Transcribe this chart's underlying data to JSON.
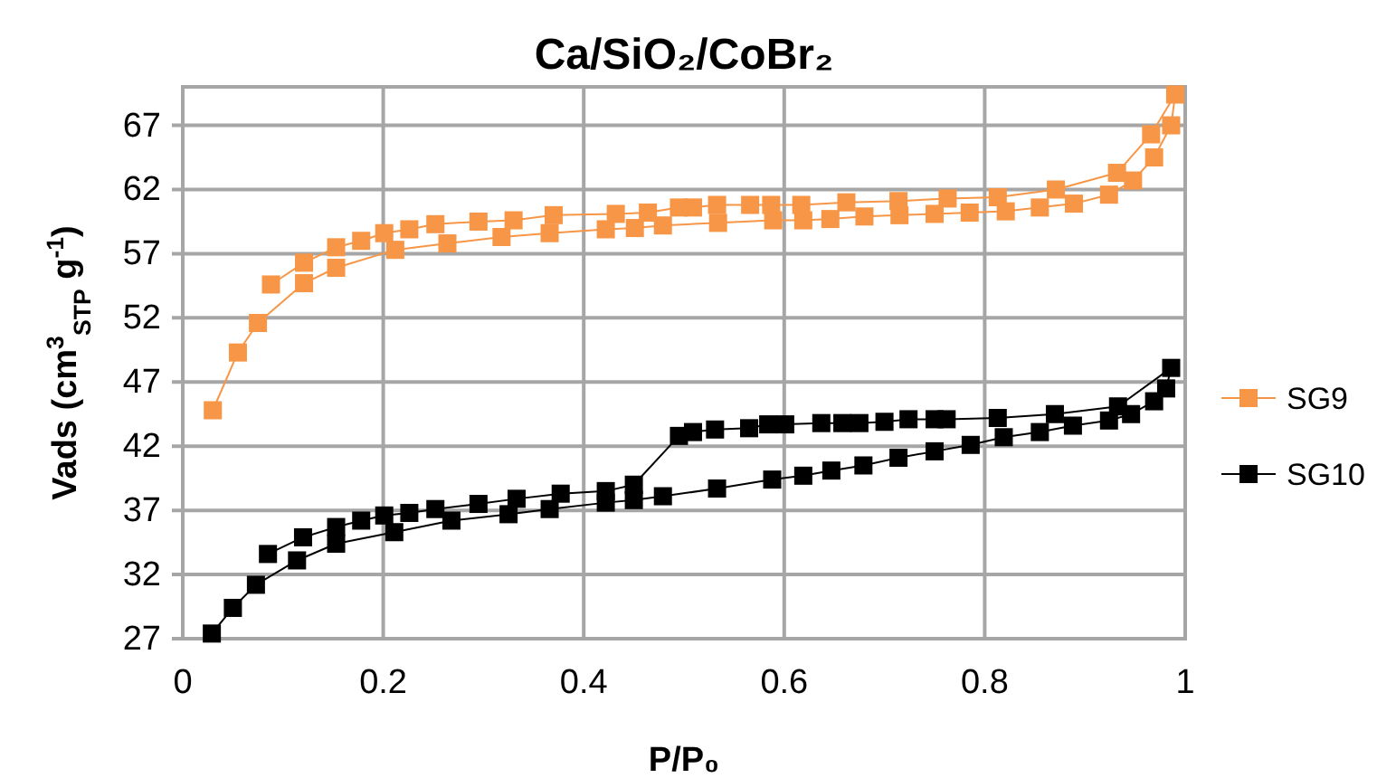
{
  "chart_data": {
    "type": "line",
    "title": "Ca/SiO₂/CoBr₂",
    "xlabel": "P/P₀",
    "ylabel": "Vads (cm$^{3}$$_{STP}$ g$^{-1}$)",
    "xlim": [
      0,
      1
    ],
    "xticks": [
      0,
      0.2,
      0.4,
      0.6,
      0.8,
      1
    ],
    "ylim": [
      27,
      70
    ],
    "yticks": [
      27,
      32,
      37,
      42,
      47,
      52,
      57,
      62,
      67
    ],
    "grid": true,
    "legend": "right",
    "marker": "square",
    "line_style": "solid",
    "series": [
      {
        "name": "SG9",
        "color": "#f79646",
        "x": [
          0.03,
          0.055,
          0.075,
          0.121,
          0.153,
          0.212,
          0.264,
          0.318,
          0.366,
          0.422,
          0.451,
          0.479,
          0.534,
          0.589,
          0.619,
          0.646,
          0.68,
          0.715,
          0.75,
          0.785,
          0.821,
          0.855,
          0.889,
          0.924,
          0.948,
          0.969,
          0.986,
          0.99,
          0.966,
          0.932,
          0.871,
          0.813,
          0.763,
          0.714,
          0.662,
          0.617,
          0.587,
          0.566,
          0.533,
          0.509,
          0.495,
          0.464,
          0.432,
          0.37,
          0.33,
          0.295,
          0.252,
          0.226,
          0.201,
          0.178,
          0.153,
          0.121,
          0.088
        ],
        "values": [
          44.8,
          49.3,
          51.6,
          54.7,
          55.9,
          57.3,
          57.8,
          58.3,
          58.6,
          58.9,
          59.0,
          59.2,
          59.4,
          59.6,
          59.6,
          59.7,
          59.9,
          60.0,
          60.1,
          60.2,
          60.3,
          60.6,
          60.9,
          61.6,
          62.7,
          64.5,
          67.0,
          69.4,
          66.3,
          63.3,
          62.0,
          61.4,
          61.3,
          61.1,
          61.0,
          60.8,
          60.8,
          60.8,
          60.8,
          60.6,
          60.6,
          60.2,
          60.1,
          60.0,
          59.6,
          59.5,
          59.3,
          58.9,
          58.6,
          58.0,
          57.5,
          56.3,
          54.6
        ]
      },
      {
        "name": "SG10",
        "color": "#000000",
        "x": [
          0.029,
          0.05,
          0.073,
          0.114,
          0.153,
          0.211,
          0.268,
          0.325,
          0.366,
          0.422,
          0.45,
          0.479,
          0.533,
          0.588,
          0.619,
          0.647,
          0.679,
          0.714,
          0.75,
          0.786,
          0.819,
          0.855,
          0.888,
          0.924,
          0.946,
          0.969,
          0.981,
          0.986,
          0.933,
          0.87,
          0.813,
          0.762,
          0.75,
          0.724,
          0.7,
          0.675,
          0.658,
          0.637,
          0.601,
          0.584,
          0.565,
          0.531,
          0.509,
          0.495,
          0.45,
          0.422,
          0.377,
          0.333,
          0.295,
          0.252,
          0.226,
          0.201,
          0.178,
          0.153,
          0.12,
          0.085
        ],
        "values": [
          27.4,
          29.4,
          31.2,
          33.1,
          34.4,
          35.3,
          36.2,
          36.7,
          37.1,
          37.6,
          37.8,
          38.1,
          38.7,
          39.4,
          39.7,
          40.1,
          40.5,
          41.1,
          41.6,
          42.1,
          42.7,
          43.1,
          43.6,
          44.0,
          44.5,
          45.5,
          46.5,
          48.1,
          45.1,
          44.5,
          44.2,
          44.1,
          44.1,
          44.1,
          43.9,
          43.8,
          43.8,
          43.8,
          43.7,
          43.7,
          43.4,
          43.3,
          43.1,
          42.8,
          39.0,
          38.5,
          38.3,
          37.9,
          37.5,
          37.1,
          36.8,
          36.6,
          36.2,
          35.7,
          34.9,
          33.6
        ]
      }
    ]
  }
}
